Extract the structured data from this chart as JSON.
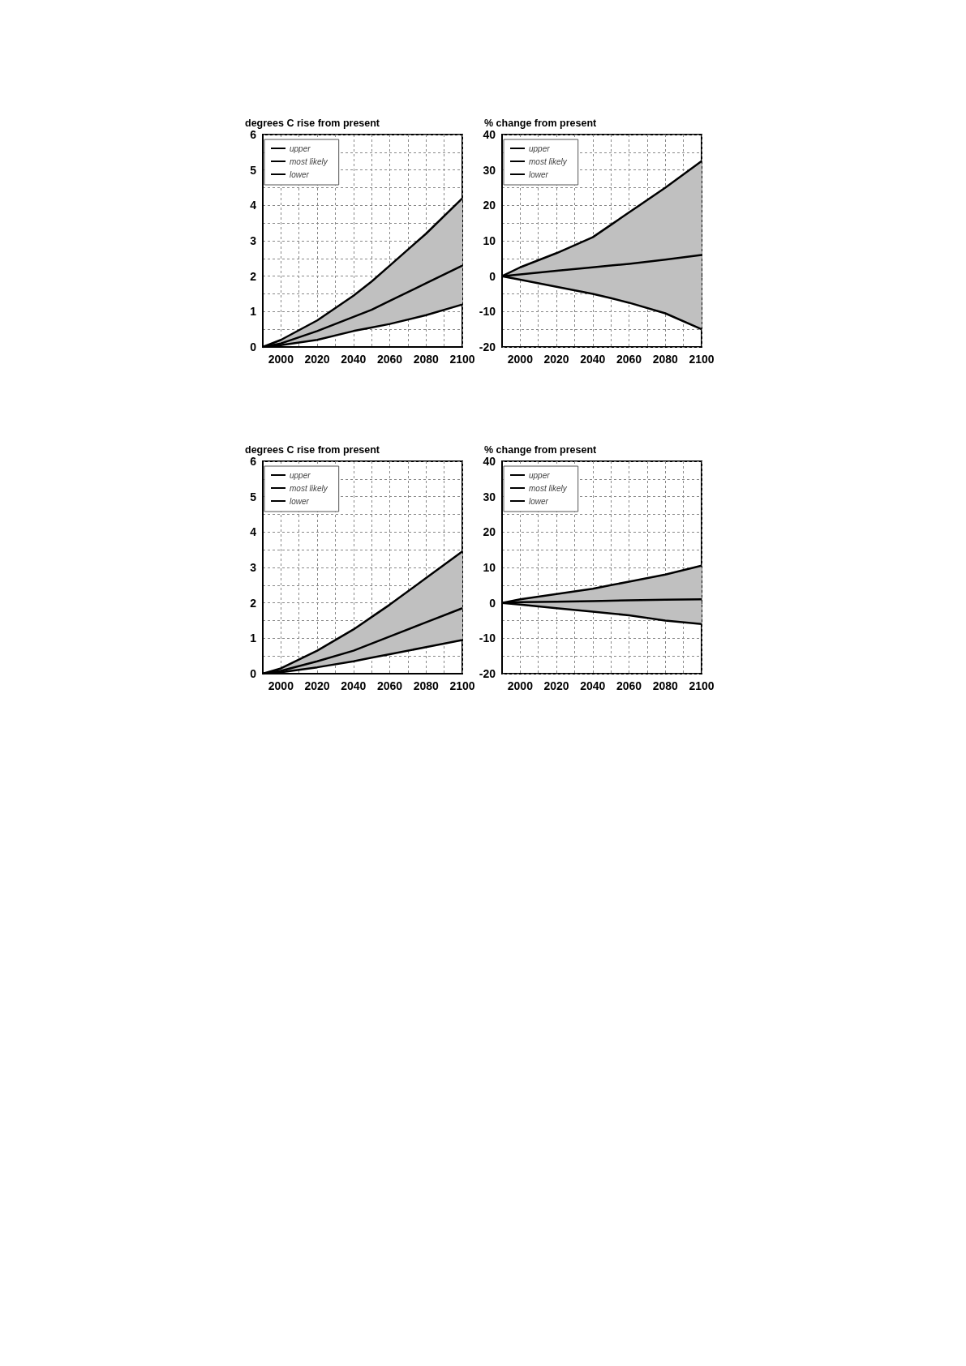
{
  "chart_data": [
    {
      "type": "line",
      "ylabel": "degrees C rise from present",
      "x": [
        1990,
        2000,
        2020,
        2040,
        2050,
        2060,
        2080,
        2100
      ],
      "series": [
        {
          "name": "upper",
          "color": "#000000",
          "values": [
            0,
            0.2,
            0.75,
            1.45,
            1.85,
            2.3,
            3.2,
            4.2
          ]
        },
        {
          "name": "most likely",
          "color": "#000000",
          "values": [
            0,
            0.1,
            0.45,
            0.85,
            1.05,
            1.3,
            1.8,
            2.3
          ],
          "lower": [
            0,
            0.05,
            0.2,
            0.45,
            0.55,
            0.65,
            0.9,
            1.2
          ],
          "upper": [
            0,
            0.2,
            0.75,
            1.45,
            1.85,
            2.3,
            3.2,
            4.2
          ]
        },
        {
          "name": "lower",
          "color": "#000000",
          "values": [
            0,
            0.05,
            0.2,
            0.45,
            0.55,
            0.65,
            0.9,
            1.2
          ]
        }
      ],
      "xlim": [
        1990,
        2100
      ],
      "xticks": [
        {
          "value": 1990,
          "label": null
        },
        2000,
        {
          "value": 2010,
          "label": null
        },
        2020,
        {
          "value": 2030,
          "label": null
        },
        2040,
        {
          "value": 2050,
          "label": null
        },
        2060,
        {
          "value": 2070,
          "label": null
        },
        2080,
        {
          "value": 2090,
          "label": null
        },
        2100
      ],
      "ylim": [
        0,
        6
      ],
      "yticks": [
        0,
        {
          "value": 0.5,
          "label": null
        },
        1,
        {
          "value": 1.5,
          "label": null
        },
        2,
        {
          "value": 2.5,
          "label": null
        },
        3,
        {
          "value": 3.5,
          "label": null
        },
        4,
        {
          "value": 4.5,
          "label": null
        },
        5,
        {
          "value": 5.5,
          "label": null
        },
        6
      ],
      "grid": true,
      "legend": "top left",
      "marker": "none",
      "line_style": "solid"
    },
    {
      "type": "line",
      "ylabel": "% change from present",
      "x": [
        1990,
        2000,
        2020,
        2040,
        2050,
        2060,
        2080,
        2100
      ],
      "series": [
        {
          "name": "upper",
          "color": "#000000",
          "values": [
            0,
            2.5,
            6.5,
            11,
            14.5,
            18,
            25,
            32.5
          ]
        },
        {
          "name": "most likely",
          "color": "#000000",
          "values": [
            0,
            0.5,
            1.5,
            2.5,
            3,
            3.5,
            4.7,
            6
          ],
          "lower": [
            0,
            -1,
            -3,
            -5,
            -6.2,
            -7.5,
            -10.5,
            -15
          ],
          "upper": [
            0,
            2.5,
            6.5,
            11,
            14.5,
            18,
            25,
            32.5
          ]
        },
        {
          "name": "lower",
          "color": "#000000",
          "values": [
            0,
            -1,
            -3,
            -5,
            -6.2,
            -7.5,
            -10.5,
            -15
          ]
        }
      ],
      "xlim": [
        1990,
        2100
      ],
      "xticks": [
        {
          "value": 1990,
          "label": null
        },
        2000,
        {
          "value": 2010,
          "label": null
        },
        2020,
        {
          "value": 2030,
          "label": null
        },
        2040,
        {
          "value": 2050,
          "label": null
        },
        2060,
        {
          "value": 2070,
          "label": null
        },
        2080,
        {
          "value": 2090,
          "label": null
        },
        2100
      ],
      "ylim": [
        -20,
        40
      ],
      "yticks": [
        -20,
        {
          "value": -15,
          "label": null
        },
        -10,
        {
          "value": -5,
          "label": null
        },
        0,
        {
          "value": 5,
          "label": null
        },
        10,
        {
          "value": 15,
          "label": null
        },
        20,
        {
          "value": 25,
          "label": null
        },
        30,
        {
          "value": 35,
          "label": null
        },
        40
      ],
      "grid": true,
      "legend": "top left",
      "marker": "none",
      "line_style": "solid"
    },
    {
      "type": "line",
      "ylabel": "degrees C rise from present",
      "x": [
        1990,
        2000,
        2020,
        2040,
        2050,
        2060,
        2080,
        2100
      ],
      "series": [
        {
          "name": "upper",
          "color": "#000000",
          "values": [
            0,
            0.15,
            0.65,
            1.25,
            1.6,
            1.95,
            2.7,
            3.45
          ]
        },
        {
          "name": "most likely",
          "color": "#000000",
          "values": [
            0,
            0.08,
            0.35,
            0.65,
            0.85,
            1.05,
            1.45,
            1.85
          ],
          "lower": [
            0,
            0.04,
            0.18,
            0.35,
            0.45,
            0.55,
            0.75,
            0.95
          ],
          "upper": [
            0,
            0.15,
            0.65,
            1.25,
            1.6,
            1.95,
            2.7,
            3.45
          ]
        },
        {
          "name": "lower",
          "color": "#000000",
          "values": [
            0,
            0.04,
            0.18,
            0.35,
            0.45,
            0.55,
            0.75,
            0.95
          ]
        }
      ],
      "xlim": [
        1990,
        2100
      ],
      "xticks": [
        {
          "value": 1990,
          "label": null
        },
        2000,
        {
          "value": 2010,
          "label": null
        },
        2020,
        {
          "value": 2030,
          "label": null
        },
        2040,
        {
          "value": 2050,
          "label": null
        },
        2060,
        {
          "value": 2070,
          "label": null
        },
        2080,
        {
          "value": 2090,
          "label": null
        },
        2100
      ],
      "ylim": [
        0,
        6
      ],
      "yticks": [
        0,
        {
          "value": 0.5,
          "label": null
        },
        1,
        {
          "value": 1.5,
          "label": null
        },
        2,
        {
          "value": 2.5,
          "label": null
        },
        3,
        {
          "value": 3.5,
          "label": null
        },
        4,
        {
          "value": 4.5,
          "label": null
        },
        5,
        {
          "value": 5.5,
          "label": null
        },
        6
      ],
      "grid": true,
      "legend": "top left",
      "marker": "none",
      "line_style": "solid"
    },
    {
      "type": "line",
      "ylabel": "% change from present",
      "x": [
        1990,
        2000,
        2020,
        2040,
        2050,
        2060,
        2080,
        2100
      ],
      "series": [
        {
          "name": "upper",
          "color": "#000000",
          "values": [
            0,
            1,
            2.5,
            4,
            5,
            6,
            8,
            10.5
          ]
        },
        {
          "name": "most likely",
          "color": "#000000",
          "values": [
            0,
            0.2,
            0.3,
            0.5,
            0.6,
            0.7,
            0.9,
            1
          ],
          "lower": [
            0,
            -0.5,
            -1.5,
            -2.5,
            -3,
            -3.5,
            -5,
            -6
          ],
          "upper": [
            0,
            1,
            2.5,
            4,
            5,
            6,
            8,
            10.5
          ]
        },
        {
          "name": "lower",
          "color": "#000000",
          "values": [
            0,
            -0.5,
            -1.5,
            -2.5,
            -3,
            -3.5,
            -5,
            -6
          ]
        }
      ],
      "xlim": [
        1990,
        2100
      ],
      "xticks": [
        {
          "value": 1990,
          "label": null
        },
        2000,
        {
          "value": 2010,
          "label": null
        },
        2020,
        {
          "value": 2030,
          "label": null
        },
        2040,
        {
          "value": 2050,
          "label": null
        },
        2060,
        {
          "value": 2070,
          "label": null
        },
        2080,
        {
          "value": 2090,
          "label": null
        },
        2100
      ],
      "ylim": [
        -20,
        40
      ],
      "yticks": [
        -20,
        {
          "value": -15,
          "label": null
        },
        -10,
        {
          "value": -5,
          "label": null
        },
        0,
        {
          "value": 5,
          "label": null
        },
        10,
        {
          "value": 15,
          "label": null
        },
        20,
        {
          "value": 25,
          "label": null
        },
        30,
        {
          "value": 35,
          "label": null
        },
        40
      ],
      "grid": true,
      "legend": "top left",
      "marker": "none",
      "line_style": "solid"
    }
  ]
}
